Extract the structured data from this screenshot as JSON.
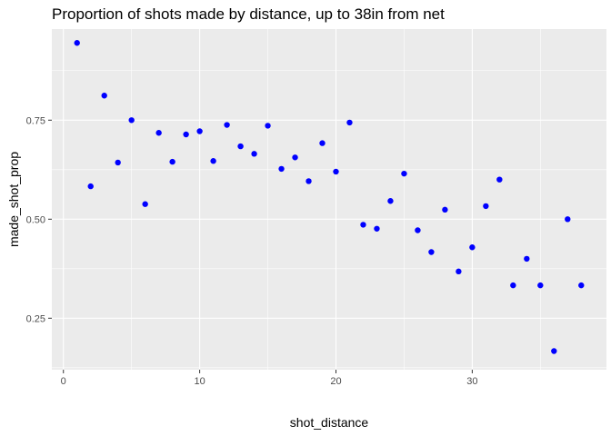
{
  "chart_data": {
    "type": "scatter",
    "title": "Proportion of shots made by distance, up to 38in from net",
    "xlabel": "shot_distance",
    "ylabel": "made_shot_prop",
    "xlim": [
      -0.85,
      39.85
    ],
    "ylim": [
      0.12,
      0.98
    ],
    "x_ticks": [
      0,
      10,
      20,
      30
    ],
    "x_tick_labels": [
      "0",
      "10",
      "20",
      "30"
    ],
    "y_ticks": [
      0.25,
      0.5,
      0.75
    ],
    "y_tick_labels": [
      "0.25",
      "0.50",
      "0.75"
    ],
    "grid": true,
    "point_color": "#0000ff",
    "panel_color": "#ebebeb",
    "grid_color": "#ffffff",
    "points": [
      {
        "x": 1,
        "y": 0.945
      },
      {
        "x": 2,
        "y": 0.583
      },
      {
        "x": 3,
        "y": 0.812
      },
      {
        "x": 4,
        "y": 0.643
      },
      {
        "x": 5,
        "y": 0.75
      },
      {
        "x": 6,
        "y": 0.538
      },
      {
        "x": 7,
        "y": 0.718
      },
      {
        "x": 8,
        "y": 0.645
      },
      {
        "x": 9,
        "y": 0.714
      },
      {
        "x": 10,
        "y": 0.722
      },
      {
        "x": 11,
        "y": 0.647
      },
      {
        "x": 12,
        "y": 0.738
      },
      {
        "x": 13,
        "y": 0.684
      },
      {
        "x": 14,
        "y": 0.665
      },
      {
        "x": 15,
        "y": 0.736
      },
      {
        "x": 16,
        "y": 0.627
      },
      {
        "x": 17,
        "y": 0.656
      },
      {
        "x": 18,
        "y": 0.596
      },
      {
        "x": 19,
        "y": 0.692
      },
      {
        "x": 20,
        "y": 0.62
      },
      {
        "x": 21,
        "y": 0.744
      },
      {
        "x": 22,
        "y": 0.486
      },
      {
        "x": 23,
        "y": 0.476
      },
      {
        "x": 24,
        "y": 0.546
      },
      {
        "x": 25,
        "y": 0.615
      },
      {
        "x": 26,
        "y": 0.472
      },
      {
        "x": 27,
        "y": 0.417
      },
      {
        "x": 28,
        "y": 0.524
      },
      {
        "x": 29,
        "y": 0.368
      },
      {
        "x": 30,
        "y": 0.429
      },
      {
        "x": 31,
        "y": 0.533
      },
      {
        "x": 32,
        "y": 0.6
      },
      {
        "x": 33,
        "y": 0.333
      },
      {
        "x": 34,
        "y": 0.4
      },
      {
        "x": 35,
        "y": 0.333
      },
      {
        "x": 36,
        "y": 0.167
      },
      {
        "x": 37,
        "y": 0.5
      },
      {
        "x": 38,
        "y": 0.333
      }
    ]
  }
}
